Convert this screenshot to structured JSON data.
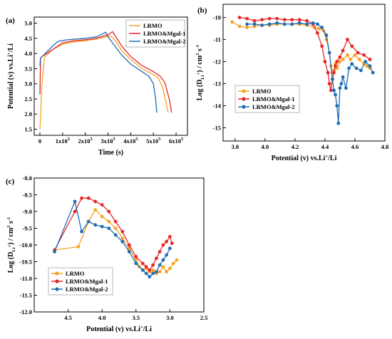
{
  "colors": {
    "LRMO": "#f7a325",
    "LRMO&Mgal-1": "#e8262a",
    "LRMO&Mgal-2": "#1f6db5"
  },
  "chart_data": [
    {
      "panel": "(a)",
      "type": "line",
      "xlabel": "Time (s)",
      "ylabel_main": "Potential (v) vs.Li",
      "ylabel_sup": "+",
      "ylabel_tail": "/Li",
      "xlim": [
        -25000,
        650000
      ],
      "ylim": [
        1.3,
        5.2
      ],
      "xticks": [
        {
          "v": 0,
          "label": "0"
        },
        {
          "v": 100000,
          "label": "1x10",
          "sup": "5"
        },
        {
          "v": 200000,
          "label": "2x10",
          "sup": "5"
        },
        {
          "v": 300000,
          "label": "3x10",
          "sup": "5"
        },
        {
          "v": 400000,
          "label": "4x10",
          "sup": "5"
        },
        {
          "v": 500000,
          "label": "5x10",
          "sup": "5"
        },
        {
          "v": 600000,
          "label": "6x10",
          "sup": "5"
        }
      ],
      "yticks": [
        {
          "v": 1.5,
          "label": "1.5"
        },
        {
          "v": 2.0,
          "label": "2.0"
        },
        {
          "v": 2.5,
          "label": "2.5"
        },
        {
          "v": 3.0,
          "label": "3.0"
        },
        {
          "v": 3.5,
          "label": "3.5"
        },
        {
          "v": 4.0,
          "label": "4.0"
        },
        {
          "v": 4.5,
          "label": "4.5"
        },
        {
          "v": 5.0,
          "label": "5.0"
        }
      ],
      "legend": "top-right",
      "series": [
        {
          "name": "LRMO",
          "x": [
            0,
            3000,
            8000,
            20000,
            30000,
            45000,
            60000,
            100000,
            150000,
            200000,
            250000,
            290000,
            310000,
            330000,
            360000,
            400000,
            450000,
            500000,
            520000,
            540000,
            555000,
            565000
          ],
          "y": [
            1.5,
            1.9,
            2.9,
            3.85,
            3.95,
            4.05,
            4.15,
            4.3,
            4.38,
            4.42,
            4.48,
            4.55,
            4.58,
            4.45,
            4.1,
            3.8,
            3.5,
            3.3,
            3.2,
            2.9,
            2.4,
            2.05
          ]
        },
        {
          "name": "LRMO&Mgal-1",
          "x": [
            0,
            3000,
            10000,
            30000,
            50000,
            100000,
            150000,
            200000,
            250000,
            300000,
            320000,
            330000,
            360000,
            400000,
            450000,
            500000,
            530000,
            550000,
            570000,
            580000
          ],
          "y": [
            2.65,
            3.85,
            3.9,
            4.0,
            4.1,
            4.35,
            4.42,
            4.45,
            4.5,
            4.62,
            4.72,
            4.6,
            4.25,
            3.9,
            3.6,
            3.4,
            3.25,
            3.05,
            2.5,
            2.05
          ]
        },
        {
          "name": "LRMO&Mgal-2",
          "x": [
            0,
            3000,
            10000,
            30000,
            50000,
            80000,
            120000,
            200000,
            250000,
            290000,
            300000,
            330000,
            360000,
            400000,
            450000,
            480000,
            500000,
            510000,
            515000
          ],
          "y": [
            3.6,
            3.85,
            3.9,
            4.05,
            4.2,
            4.4,
            4.45,
            4.5,
            4.55,
            4.7,
            4.55,
            4.25,
            3.95,
            3.65,
            3.4,
            3.25,
            3.0,
            2.5,
            2.05
          ]
        }
      ]
    },
    {
      "panel": "(b)",
      "type": "line",
      "xlabel_main": "Potential (v) vs.Li",
      "xlabel_sup": "+",
      "xlabel_tail": "/Li",
      "ylabel_a": "Log (D",
      "ylabel_sub": "Li",
      "ylabel_subsup": "+",
      "ylabel_b": ") / cm",
      "ylabel_sup1": "2",
      "ylabel_c": " s",
      "ylabel_sup2": "-1",
      "xlim": [
        3.72,
        4.8
      ],
      "ylim": [
        -15.6,
        -9.4
      ],
      "xticks": [
        {
          "v": 3.8,
          "label": "3.8"
        },
        {
          "v": 4.0,
          "label": "4.0"
        },
        {
          "v": 4.2,
          "label": "4.2"
        },
        {
          "v": 4.4,
          "label": "4.4"
        },
        {
          "v": 4.6,
          "label": "4.6"
        },
        {
          "v": 4.8,
          "label": "4.8"
        }
      ],
      "yticks": [
        {
          "v": -10,
          "label": "-10"
        },
        {
          "v": -11,
          "label": "-11"
        },
        {
          "v": -12,
          "label": "-12"
        },
        {
          "v": -13,
          "label": "-13"
        },
        {
          "v": -14,
          "label": "-14"
        },
        {
          "v": -15,
          "label": "-15"
        }
      ],
      "legend": "lower-left",
      "series": [
        {
          "name": "LRMO",
          "x": [
            3.78,
            3.83,
            3.88,
            3.93,
            3.98,
            4.03,
            4.08,
            4.13,
            4.18,
            4.23,
            4.28,
            4.33,
            4.36,
            4.39,
            4.41,
            4.43,
            4.44,
            4.45,
            4.46,
            4.47,
            4.48,
            4.5,
            4.52,
            4.55,
            4.57,
            4.6,
            4.63,
            4.66,
            4.68,
            4.7
          ],
          "y": [
            -10.2,
            -10.4,
            -10.45,
            -10.4,
            -10.35,
            -10.35,
            -10.3,
            -10.3,
            -10.3,
            -10.3,
            -10.35,
            -10.45,
            -10.5,
            -10.6,
            -11.0,
            -11.6,
            -12.2,
            -12.5,
            -12.4,
            -12.1,
            -12.3,
            -12.0,
            -11.9,
            -11.7,
            -11.9,
            -11.7,
            -11.9,
            -12.1,
            -12.2,
            -12.3
          ]
        },
        {
          "name": "LRMO&Mgal-1",
          "x": [
            3.83,
            3.88,
            3.93,
            3.98,
            4.03,
            4.08,
            4.13,
            4.18,
            4.23,
            4.28,
            4.32,
            4.35,
            4.38,
            4.4,
            4.42,
            4.43,
            4.44,
            4.45,
            4.46,
            4.47,
            4.48,
            4.5,
            4.52,
            4.55,
            4.58,
            4.62,
            4.66,
            4.7
          ],
          "y": [
            -10.0,
            -10.05,
            -10.15,
            -10.1,
            -10.05,
            -10.05,
            -10.1,
            -10.1,
            -10.1,
            -10.15,
            -10.3,
            -10.7,
            -11.3,
            -12.0,
            -12.5,
            -13.0,
            -13.3,
            -12.8,
            -12.5,
            -12.2,
            -12.0,
            -11.8,
            -11.5,
            -11.0,
            -11.3,
            -11.6,
            -11.7,
            -11.9
          ]
        },
        {
          "name": "LRMO&Mgal-2",
          "x": [
            3.88,
            3.93,
            3.98,
            4.03,
            4.08,
            4.13,
            4.18,
            4.23,
            4.28,
            4.32,
            4.35,
            4.38,
            4.41,
            4.43,
            4.45,
            4.46,
            4.47,
            4.48,
            4.49,
            4.5,
            4.51,
            4.52,
            4.54,
            4.56,
            4.58,
            4.61,
            4.64,
            4.67,
            4.7,
            4.72
          ],
          "y": [
            -10.3,
            -10.3,
            -10.35,
            -10.3,
            -10.25,
            -10.3,
            -10.3,
            -10.25,
            -10.3,
            -10.25,
            -10.3,
            -10.45,
            -10.8,
            -11.6,
            -12.8,
            -13.3,
            -13.5,
            -14.0,
            -14.8,
            -13.2,
            -13.0,
            -12.7,
            -13.2,
            -12.3,
            -12.1,
            -12.3,
            -12.4,
            -12.0,
            -12.2,
            -12.5
          ]
        }
      ]
    },
    {
      "panel": "(c)",
      "type": "line",
      "xlabel_main": "Potential (v) vs.Li",
      "xlabel_sup": "+",
      "xlabel_tail": "/Li",
      "ylabel_a": "Log (D",
      "ylabel_sub": "Li",
      "ylabel_subsup": "+",
      "ylabel_b": ") / cm",
      "ylabel_sup1": "2",
      "ylabel_c": " s",
      "ylabel_sup2": "-1",
      "xlim": [
        5.0,
        2.5
      ],
      "ylim": [
        -12.0,
        -8.0
      ],
      "xticks": [
        {
          "v": 4.5,
          "label": "4.5"
        },
        {
          "v": 4.0,
          "label": "4.0"
        },
        {
          "v": 3.5,
          "label": "3.5"
        },
        {
          "v": 3.0,
          "label": "3.0"
        },
        {
          "v": 2.5,
          "label": "2.5"
        }
      ],
      "yticks": [
        {
          "v": -8.0,
          "label": "-8.0"
        },
        {
          "v": -8.5,
          "label": "-8.5"
        },
        {
          "v": -9.0,
          "label": "-9.0"
        },
        {
          "v": -9.5,
          "label": "-9.5"
        },
        {
          "v": -10.0,
          "label": "-10.0"
        },
        {
          "v": -10.5,
          "label": "-10.5"
        },
        {
          "v": -11.0,
          "label": "-11.0"
        },
        {
          "v": -11.5,
          "label": "-11.5"
        },
        {
          "v": -12.0,
          "label": "-12.0"
        }
      ],
      "legend": "lower-left",
      "series": [
        {
          "name": "LRMO",
          "x": [
            4.7,
            4.35,
            4.2,
            4.1,
            4.0,
            3.9,
            3.8,
            3.7,
            3.6,
            3.5,
            3.45,
            3.4,
            3.35,
            3.3,
            3.25,
            3.2,
            3.15,
            3.1,
            3.05,
            3.0,
            2.95,
            2.9
          ],
          "y": [
            -10.15,
            -10.05,
            -9.3,
            -8.95,
            -9.15,
            -9.3,
            -9.5,
            -9.8,
            -10.1,
            -10.45,
            -10.65,
            -10.75,
            -10.7,
            -10.8,
            -10.75,
            -10.85,
            -10.8,
            -10.65,
            -10.8,
            -10.7,
            -10.55,
            -10.45
          ]
        },
        {
          "name": "LRMO&Mgal-1",
          "x": [
            4.7,
            4.4,
            4.3,
            4.2,
            4.1,
            4.0,
            3.9,
            3.8,
            3.7,
            3.6,
            3.5,
            3.4,
            3.35,
            3.3,
            3.25,
            3.2,
            3.15,
            3.1,
            3.05,
            3.0,
            2.97
          ],
          "y": [
            -10.15,
            -9.0,
            -8.6,
            -8.6,
            -8.7,
            -8.8,
            -9.0,
            -9.3,
            -9.6,
            -10.0,
            -10.35,
            -10.55,
            -10.65,
            -10.75,
            -10.6,
            -10.4,
            -10.2,
            -10.0,
            -9.9,
            -9.75,
            -9.95
          ]
        },
        {
          "name": "LRMO&Mgal-2",
          "x": [
            4.7,
            4.4,
            4.3,
            4.2,
            4.1,
            4.0,
            3.9,
            3.8,
            3.7,
            3.6,
            3.5,
            3.4,
            3.35,
            3.3,
            3.25,
            3.2,
            3.15,
            3.1,
            3.05,
            3.0
          ],
          "y": [
            -10.2,
            -8.7,
            -9.6,
            -9.3,
            -9.4,
            -9.45,
            -9.5,
            -9.7,
            -9.9,
            -10.2,
            -10.55,
            -10.75,
            -10.85,
            -10.95,
            -10.85,
            -10.8,
            -10.6,
            -10.45,
            -10.3,
            -10.1
          ]
        }
      ]
    }
  ]
}
